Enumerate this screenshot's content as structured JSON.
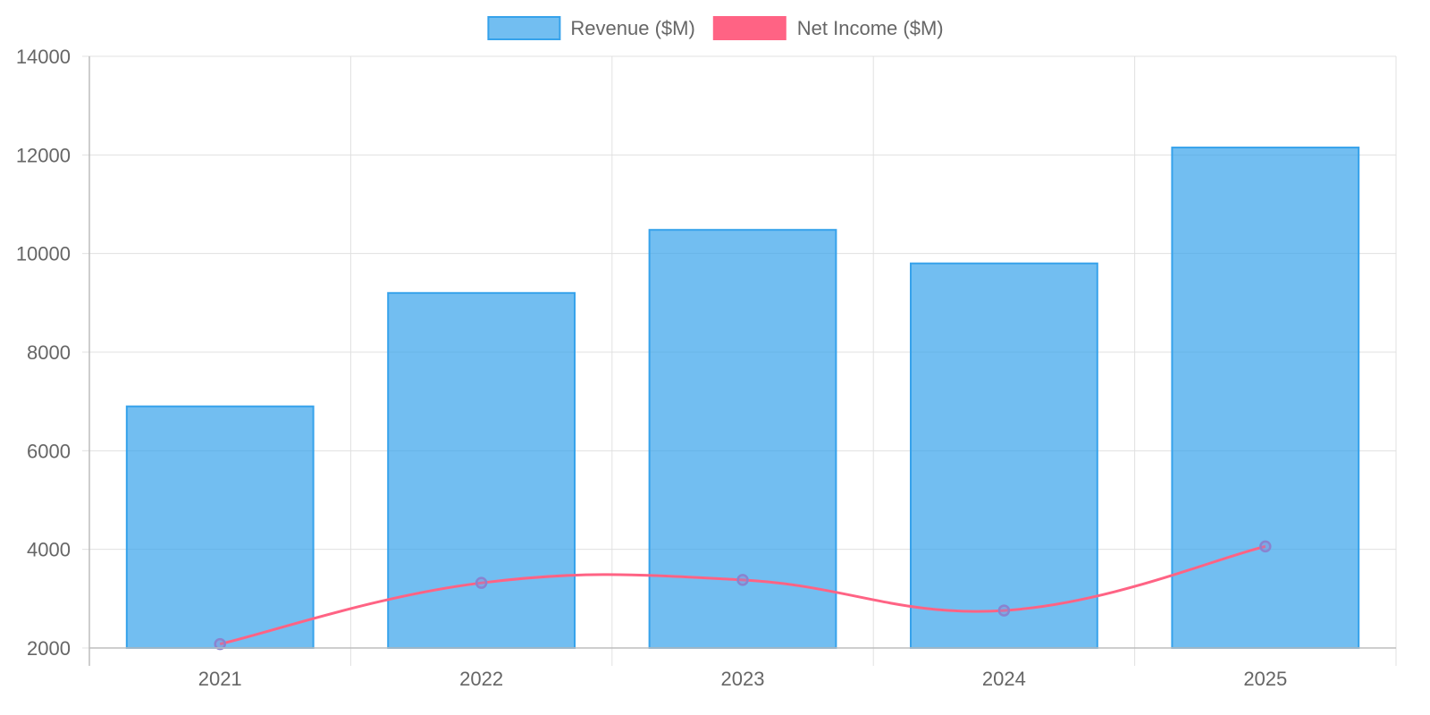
{
  "chart_data": {
    "type": "bar",
    "categories": [
      "2021",
      "2022",
      "2023",
      "2024",
      "2025"
    ],
    "series": [
      {
        "name": "Revenue ($M)",
        "type": "bar",
        "values": [
          6900,
          9200,
          10480,
          9800,
          12150
        ],
        "color": "#36a2eb",
        "fill": "rgba(54,162,235,0.7)"
      },
      {
        "name": "Net Income ($M)",
        "type": "line",
        "values": [
          2080,
          3320,
          3380,
          2760,
          4060
        ],
        "color": "#ff6384",
        "point_color": "#8a83cf"
      }
    ],
    "y_ticks": [
      "2000",
      "4000",
      "6000",
      "8000",
      "10000",
      "12000",
      "14000"
    ],
    "ylim": [
      2000,
      14000
    ],
    "grid": true,
    "legend": "top-center"
  }
}
